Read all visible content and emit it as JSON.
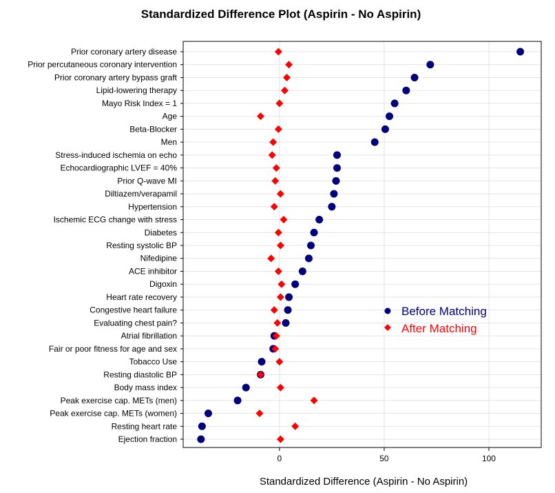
{
  "chart_data": {
    "type": "scatter",
    "title": "Standardized Difference Plot (Aspirin - No Aspirin)",
    "xlabel": "Standardized Difference (Aspirin - No Aspirin)",
    "ylabel": "",
    "xlim": [
      -46,
      125
    ],
    "xticks": [
      0,
      50,
      100
    ],
    "grid": true,
    "legend_position": "right-center",
    "categories": [
      "Prior coronary artery disease",
      "Prior percutaneous coronary intervention",
      "Prior coronary artery bypass graft",
      "Lipid-lowering therapy",
      "Mayo Risk Index = 1",
      "Age",
      "Beta-Blocker",
      "Men",
      "Stress-induced ischemia on echo",
      "Echocardiographic LVEF = 40%",
      "Prior Q-wave MI",
      "Diltiazem/verapamil",
      "Hypertension",
      "Ischemic ECG change with stress",
      "Diabetes",
      "Resting systolic BP",
      "Nifedipine",
      "ACE inhibitor",
      "Digoxin",
      "Heart rate recovery",
      "Congestive heart failure",
      "Evaluating chest pain?",
      "Atrial fibrillation",
      "Fair or poor fitness for age and sex",
      "Tobacco Use",
      "Resting diastolic BP",
      "Body mass index",
      "Peak exercise cap. METs (men)",
      "Peak exercise cap. METs (women)",
      "Resting heart rate",
      "Ejection fraction"
    ],
    "series": [
      {
        "name": "Before Matching",
        "color": "#00007f",
        "marker": "circle",
        "values": [
          115,
          72,
          64.5,
          60.5,
          55,
          52.5,
          50.5,
          45.5,
          27.5,
          27.5,
          27,
          26,
          25,
          19,
          16.5,
          15,
          14,
          11,
          7.5,
          4.5,
          4,
          3,
          -2.5,
          -3,
          -8.5,
          -9,
          -16,
          -20,
          -34,
          -37,
          -37.5
        ]
      },
      {
        "name": "After Matching",
        "color": "#ff0000",
        "marker": "diamond",
        "values": [
          -0.5,
          4.5,
          3.5,
          2.5,
          0,
          -9,
          -0.5,
          -3,
          -3.5,
          -1.5,
          -2,
          0.5,
          -2.5,
          2,
          -0.5,
          0.5,
          -4,
          -0.5,
          1,
          0.5,
          -2.5,
          -1,
          -1.5,
          -2,
          0,
          -9,
          0.5,
          16.5,
          -9.5,
          7.5,
          0.5
        ]
      }
    ]
  }
}
